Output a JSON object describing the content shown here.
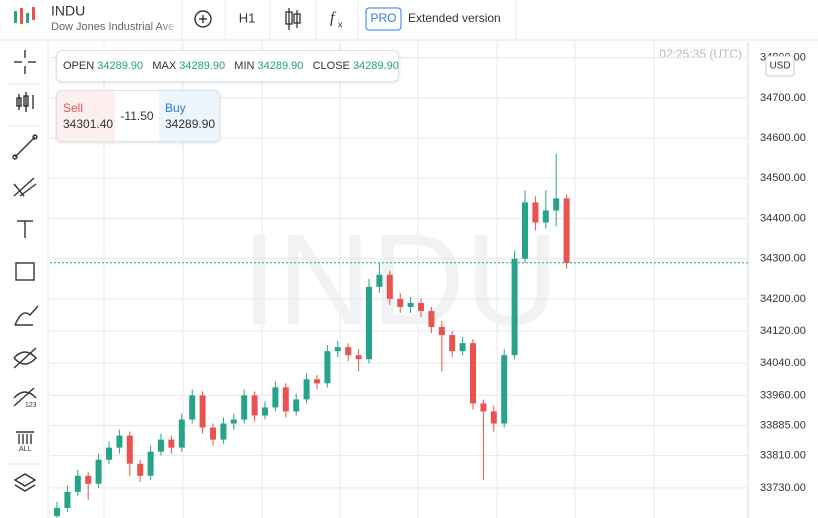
{
  "header": {
    "symbol": "INDU",
    "name": "Dow Jones Industrial Ave",
    "timeframe": "H1",
    "pro_badge": "PRO",
    "extended": "Extended version"
  },
  "time": "02:25:35 (UTC)",
  "currency": "USD",
  "watermark": "INDU",
  "ohlc": {
    "open_label": "OPEN",
    "open": "34289.90",
    "max_label": "MAX",
    "max": "34289.90",
    "min_label": "MIN",
    "min": "34289.90",
    "close_label": "CLOSE",
    "close": "34289.90"
  },
  "trade": {
    "sell_label": "Sell",
    "sell": "34301.40",
    "spread": "-11.50",
    "buy_label": "Buy",
    "buy": "34289.90"
  },
  "chart_data": {
    "type": "candlestick",
    "up_color": "#26a38a",
    "down_color": "#e9534f",
    "grid": true,
    "ylim": [
      33655,
      34839
    ],
    "yticks": [
      {
        "value": 34800,
        "label": "34800.00"
      },
      {
        "value": 34700,
        "label": "34700.00"
      },
      {
        "value": 34600,
        "label": "34600.00"
      },
      {
        "value": 34500,
        "label": "34500.00"
      },
      {
        "value": 34400,
        "label": "34400.00"
      },
      {
        "value": 34300,
        "label": "34300.00"
      },
      {
        "value": 34200,
        "label": "34200.00"
      },
      {
        "value": 34120,
        "label": "34120.00"
      },
      {
        "value": 34040,
        "label": "34040.00"
      },
      {
        "value": 33960,
        "label": "33960.00"
      },
      {
        "value": 33885,
        "label": "33885.00"
      },
      {
        "value": 33810,
        "label": "33810.00"
      },
      {
        "value": 33730,
        "label": "33730.00"
      }
    ],
    "open": [
      33660,
      33680,
      33720,
      33760,
      33740,
      33800,
      33830,
      33860,
      33790,
      33760,
      33820,
      33850,
      33830,
      33900,
      33960,
      33880,
      33850,
      33890,
      33900,
      33960,
      33910,
      33930,
      33980,
      33920,
      33950,
      34000,
      33990,
      34070,
      34080,
      34060,
      34050,
      34230,
      34260,
      34200,
      34180,
      34190,
      34170,
      34130,
      34110,
      34070,
      34090,
      33940,
      33920,
      33890,
      34060,
      34300,
      34440,
      34390,
      34420,
      34450
    ],
    "high": [
      33695,
      33735,
      33775,
      33770,
      33815,
      33845,
      33875,
      33870,
      33800,
      33835,
      33865,
      33860,
      33915,
      33975,
      33970,
      33890,
      33905,
      33915,
      33975,
      33970,
      33945,
      33995,
      33990,
      33965,
      34015,
      34010,
      34085,
      34095,
      34090,
      34075,
      34250,
      34290,
      34270,
      34215,
      34205,
      34200,
      34180,
      34145,
      34120,
      34105,
      34100,
      33950,
      33935,
      34075,
      34320,
      34470,
      34455,
      34470,
      34560,
      34460
    ],
    "low": [
      33650,
      33670,
      33710,
      33700,
      33730,
      33790,
      33815,
      33760,
      33745,
      33750,
      33810,
      33815,
      33820,
      33890,
      33865,
      33835,
      33840,
      33875,
      33890,
      33895,
      33900,
      33920,
      33905,
      33910,
      33940,
      33975,
      33980,
      34055,
      34045,
      34020,
      34040,
      34215,
      34185,
      34165,
      34165,
      34155,
      34115,
      34020,
      34055,
      34060,
      33925,
      33750,
      33870,
      33880,
      34050,
      34290,
      34370,
      34375,
      34380,
      34275
    ],
    "close": [
      33680,
      33720,
      33760,
      33740,
      33800,
      33830,
      33860,
      33790,
      33760,
      33820,
      33850,
      33830,
      33900,
      33960,
      33880,
      33850,
      33890,
      33900,
      33960,
      33910,
      33930,
      33980,
      33920,
      33950,
      34000,
      33990,
      34070,
      34080,
      34060,
      34050,
      34230,
      34260,
      34200,
      34180,
      34190,
      34170,
      34130,
      34110,
      34070,
      34090,
      33940,
      33920,
      33890,
      34060,
      34300,
      34440,
      34390,
      34420,
      34450,
      34289.9
    ]
  }
}
